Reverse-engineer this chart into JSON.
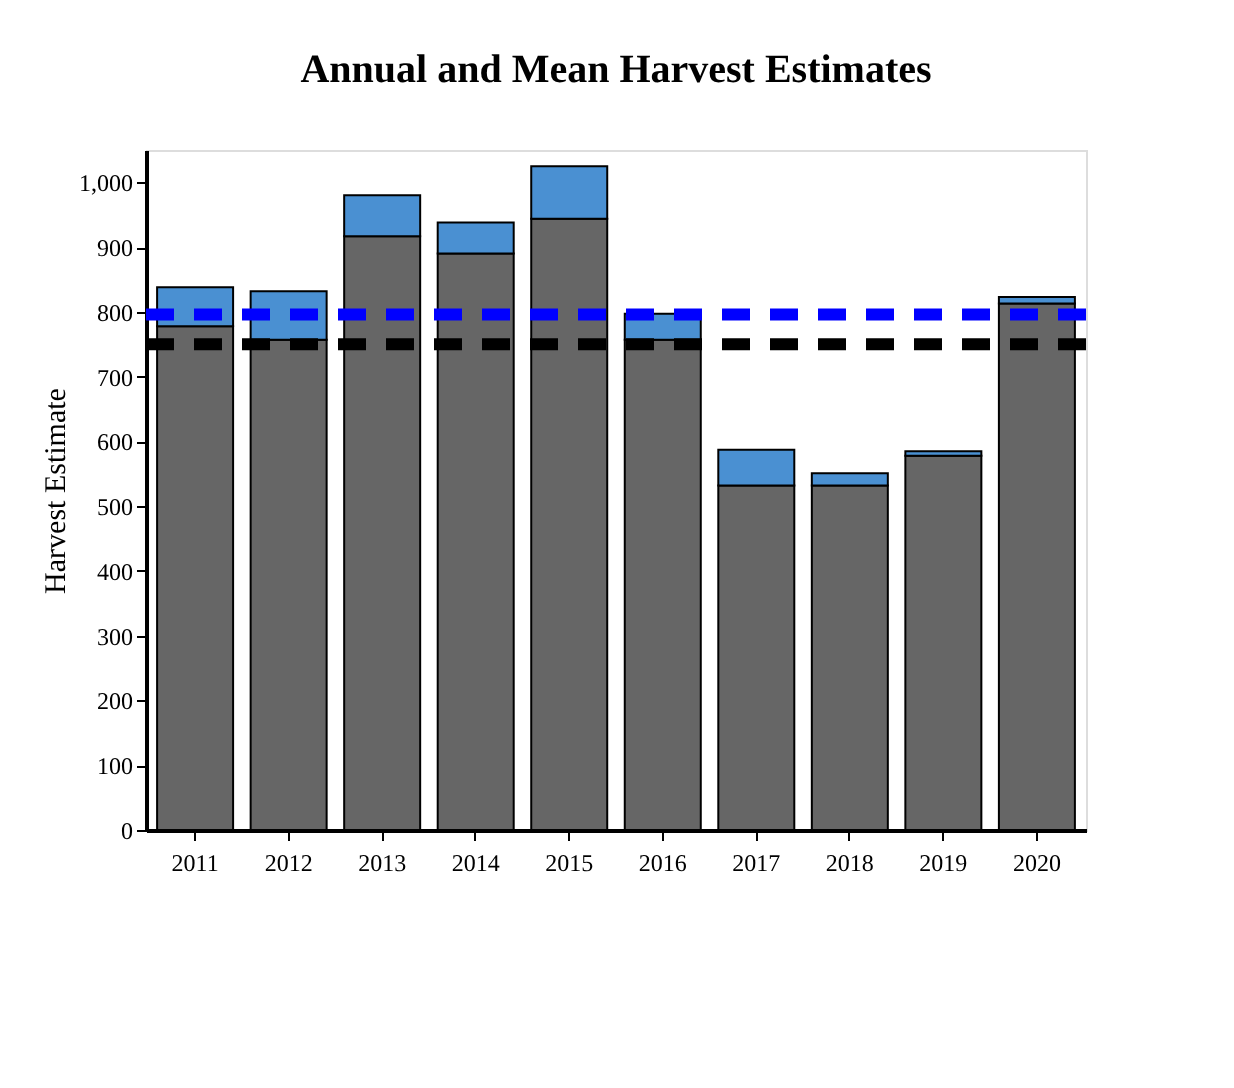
{
  "chart_data": {
    "type": "bar",
    "title": "Annual and Mean Harvest Estimates",
    "ylabel": "Harvest Estimate",
    "categories": [
      "2011",
      "2012",
      "2013",
      "2014",
      "2015",
      "2016",
      "2017",
      "2018",
      "2019",
      "2020"
    ],
    "stacked": true,
    "series": [
      {
        "color": "#666666",
        "values": [
          778,
          757,
          917,
          890,
          944,
          757,
          532,
          532,
          578,
          813
        ]
      },
      {
        "color": "#4a90d2",
        "values": [
          60,
          75,
          63,
          48,
          81,
          40,
          55,
          19,
          7,
          10
        ]
      }
    ],
    "ylim": [
      0,
      1050
    ],
    "yticks": [
      0,
      100,
      200,
      300,
      400,
      500,
      600,
      700,
      800,
      900,
      {
        "value": 1000,
        "label": "1,000"
      }
    ],
    "ref_lines": [
      {
        "axis": "y",
        "value": 796,
        "color": "#0000ff",
        "line_style": "dashed"
      },
      {
        "axis": "y",
        "value": 750,
        "color": "#000000",
        "line_style": "dashed"
      }
    ],
    "grid": false
  }
}
